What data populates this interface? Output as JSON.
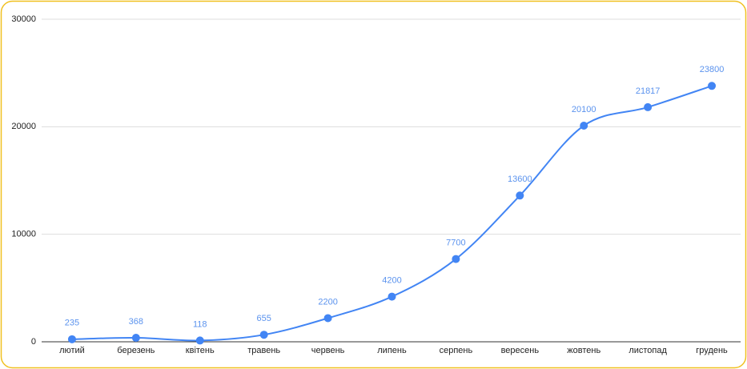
{
  "chart_data": {
    "type": "line",
    "categories": [
      "лютий",
      "березень",
      "квітень",
      "травень",
      "червень",
      "липень",
      "серпень",
      "вересень",
      "жовтень",
      "листопад",
      "грудень"
    ],
    "values": [
      235,
      368,
      118,
      655,
      2200,
      4200,
      7700,
      13600,
      20100,
      21817,
      23800
    ],
    "color": "#4285f4",
    "ylim": [
      0,
      30000
    ],
    "yticks": [
      0,
      10000,
      20000,
      30000
    ],
    "grid": true
  }
}
